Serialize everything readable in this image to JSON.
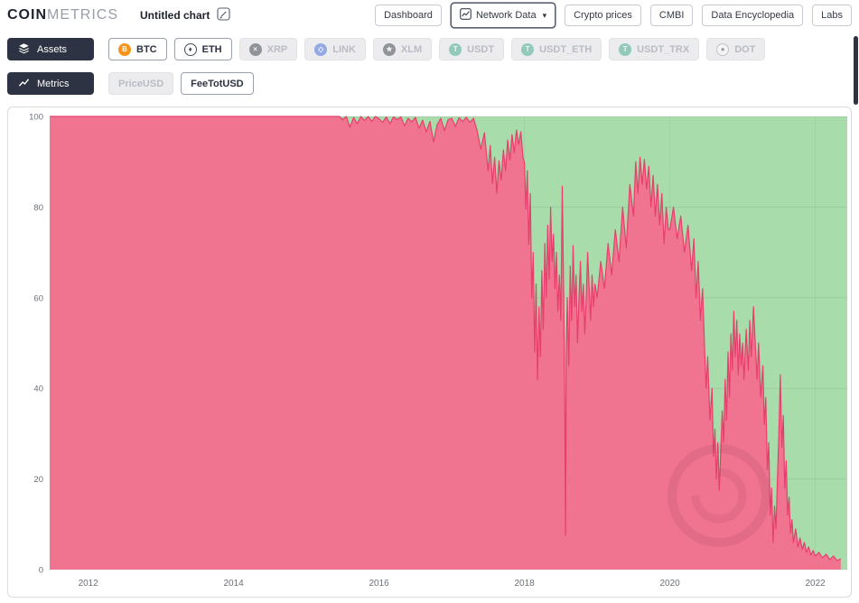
{
  "header": {
    "logo": {
      "part1": "COIN",
      "part2": "METRICS"
    },
    "chart_title": "Untitled chart",
    "nav": [
      {
        "id": "dashboard",
        "label": "Dashboard",
        "active": false
      },
      {
        "id": "network-data",
        "label": "Network Data",
        "active": true
      },
      {
        "id": "crypto-prices",
        "label": "Crypto prices",
        "active": false
      },
      {
        "id": "cmbi",
        "label": "CMBI",
        "active": false
      },
      {
        "id": "data-encyclopedia",
        "label": "Data Encyclopedia",
        "active": false
      },
      {
        "id": "labs",
        "label": "Labs",
        "active": false
      }
    ]
  },
  "assets": {
    "section_label": "Assets",
    "items": [
      {
        "id": "btc",
        "label": "BTC",
        "selected": true,
        "icon_glyph": "B",
        "icon_bg": "#f7931a",
        "icon_color": "#ffffff"
      },
      {
        "id": "eth",
        "label": "ETH",
        "selected": true,
        "icon_glyph": "♦",
        "icon_bg": "#ffffff",
        "icon_color": "#454c58",
        "icon_border": "#454c58"
      },
      {
        "id": "xrp",
        "label": "XRP",
        "selected": false,
        "icon_glyph": "×",
        "icon_bg": "#23292e",
        "icon_color": "#ffffff"
      },
      {
        "id": "link",
        "label": "LINK",
        "selected": false,
        "icon_glyph": "◇",
        "icon_bg": "#2a5ada",
        "icon_color": "#ffffff"
      },
      {
        "id": "xlm",
        "label": "XLM",
        "selected": false,
        "icon_glyph": "★",
        "icon_bg": "#23292e",
        "icon_color": "#ffffff"
      },
      {
        "id": "usdt",
        "label": "USDT",
        "selected": false,
        "icon_glyph": "T",
        "icon_bg": "#26a17b",
        "icon_color": "#ffffff"
      },
      {
        "id": "usdt_eth",
        "label": "USDT_ETH",
        "selected": false,
        "icon_glyph": "T",
        "icon_bg": "#26a17b",
        "icon_color": "#ffffff"
      },
      {
        "id": "usdt_trx",
        "label": "USDT_TRX",
        "selected": false,
        "icon_glyph": "T",
        "icon_bg": "#26a17b",
        "icon_color": "#ffffff"
      },
      {
        "id": "dot",
        "label": "DOT",
        "selected": false,
        "icon_glyph": "●",
        "icon_bg": "#ffffff",
        "icon_color": "#3a404c",
        "icon_border": "#8a8f9a"
      }
    ]
  },
  "metrics": {
    "section_label": "Metrics",
    "items": [
      {
        "id": "priceusd",
        "label": "PriceUSD",
        "selected": false
      },
      {
        "id": "feetotusd",
        "label": "FeeTotUSD",
        "selected": true
      }
    ]
  },
  "colors": {
    "pill_dark": "#2d3342",
    "btc_orange": "#f7931a",
    "usdt_green": "#26a17b",
    "axis_text": "#6a6f79"
  },
  "chart_data": {
    "type": "area",
    "stacked_percent": true,
    "title": "",
    "metric": "FeeTotUSD share (%)",
    "xlim": [
      2011.47,
      2022.44
    ],
    "ylim": [
      0,
      100
    ],
    "x_ticks": [
      2012,
      2014,
      2016,
      2018,
      2020,
      2022
    ],
    "y_ticks": [
      0,
      20,
      40,
      60,
      80,
      100
    ],
    "grid": true,
    "legend": "none",
    "series": [
      {
        "name": "BTC",
        "color": "#f0738f",
        "line_color": "#e63f6c",
        "points": [
          [
            2011.47,
            100
          ],
          [
            2012,
            100
          ],
          [
            2012.5,
            100
          ],
          [
            2013,
            100
          ],
          [
            2013.5,
            100
          ],
          [
            2014,
            100
          ],
          [
            2014.5,
            100
          ],
          [
            2015,
            100
          ],
          [
            2015.3,
            100
          ],
          [
            2015.45,
            100
          ],
          [
            2015.5,
            99.3
          ],
          [
            2015.55,
            100
          ],
          [
            2015.6,
            97.6
          ],
          [
            2015.65,
            99.8
          ],
          [
            2015.7,
            98.4
          ],
          [
            2015.75,
            100
          ],
          [
            2015.8,
            99.1
          ],
          [
            2015.85,
            100
          ],
          [
            2015.9,
            98.9
          ],
          [
            2015.95,
            100
          ],
          [
            2016,
            99.5
          ],
          [
            2016.05,
            98.7
          ],
          [
            2016.1,
            99.9
          ],
          [
            2016.15,
            98.4
          ],
          [
            2016.2,
            99.9
          ],
          [
            2016.25,
            99.3
          ],
          [
            2016.3,
            99.9
          ],
          [
            2016.35,
            97.9
          ],
          [
            2016.4,
            99.6
          ],
          [
            2016.45,
            98.8
          ],
          [
            2016.5,
            99.8
          ],
          [
            2016.55,
            97.4
          ],
          [
            2016.6,
            99.2
          ],
          [
            2016.65,
            96.6
          ],
          [
            2016.7,
            98.9
          ],
          [
            2016.75,
            94.4
          ],
          [
            2016.8,
            98.2
          ],
          [
            2016.85,
            99.6
          ],
          [
            2016.9,
            96.9
          ],
          [
            2016.95,
            99.3
          ],
          [
            2017,
            99.6
          ],
          [
            2017.05,
            97.8
          ],
          [
            2017.1,
            99.7
          ],
          [
            2017.15,
            98.9
          ],
          [
            2017.2,
            99.8
          ],
          [
            2017.25,
            98.7
          ],
          [
            2017.3,
            99.6
          ],
          [
            2017.35,
            96.8
          ],
          [
            2017.4,
            92.8
          ],
          [
            2017.45,
            96.4
          ],
          [
            2017.5,
            88
          ],
          [
            2017.53,
            93.6
          ],
          [
            2017.56,
            85.2
          ],
          [
            2017.59,
            91
          ],
          [
            2017.62,
            83
          ],
          [
            2017.65,
            90.2
          ],
          [
            2017.68,
            86
          ],
          [
            2017.71,
            92.6
          ],
          [
            2017.74,
            88
          ],
          [
            2017.77,
            94.8
          ],
          [
            2017.8,
            90.4
          ],
          [
            2017.83,
            96
          ],
          [
            2017.86,
            92
          ],
          [
            2017.89,
            97
          ],
          [
            2017.92,
            93.8
          ],
          [
            2017.95,
            96.6
          ],
          [
            2017.98,
            91
          ],
          [
            2018,
            89.8
          ],
          [
            2018.02,
            79.6
          ],
          [
            2018.04,
            88
          ],
          [
            2018.06,
            71.8
          ],
          [
            2018.08,
            83
          ],
          [
            2018.1,
            60
          ],
          [
            2018.12,
            70
          ],
          [
            2018.14,
            48
          ],
          [
            2018.16,
            63
          ],
          [
            2018.18,
            42
          ],
          [
            2018.2,
            58
          ],
          [
            2018.22,
            47
          ],
          [
            2018.24,
            66
          ],
          [
            2018.26,
            53
          ],
          [
            2018.28,
            72
          ],
          [
            2018.3,
            60
          ],
          [
            2018.32,
            76
          ],
          [
            2018.34,
            64
          ],
          [
            2018.36,
            80
          ],
          [
            2018.38,
            68
          ],
          [
            2018.4,
            74
          ],
          [
            2018.42,
            62
          ],
          [
            2018.44,
            70
          ],
          [
            2018.46,
            57
          ],
          [
            2018.48,
            65
          ],
          [
            2018.5,
            55
          ],
          [
            2018.52,
            84.6
          ],
          [
            2018.54,
            60
          ],
          [
            2018.555,
            35
          ],
          [
            2018.565,
            7.5
          ],
          [
            2018.575,
            48
          ],
          [
            2018.59,
            60
          ],
          [
            2018.61,
            45
          ],
          [
            2018.63,
            67
          ],
          [
            2018.65,
            55
          ],
          [
            2018.67,
            71.5
          ],
          [
            2018.69,
            58
          ],
          [
            2018.71,
            65
          ],
          [
            2018.73,
            50
          ],
          [
            2018.75,
            60
          ],
          [
            2018.77,
            68
          ],
          [
            2018.79,
            57
          ],
          [
            2018.81,
            63
          ],
          [
            2018.83,
            52
          ],
          [
            2018.85,
            60
          ],
          [
            2018.87,
            70
          ],
          [
            2018.89,
            62
          ],
          [
            2018.91,
            55
          ],
          [
            2018.93,
            65
          ],
          [
            2018.95,
            58
          ],
          [
            2018.97,
            63
          ],
          [
            2019,
            60
          ],
          [
            2019.05,
            68
          ],
          [
            2019.1,
            62
          ],
          [
            2019.15,
            72
          ],
          [
            2019.2,
            65
          ],
          [
            2019.25,
            75
          ],
          [
            2019.3,
            68
          ],
          [
            2019.35,
            80
          ],
          [
            2019.4,
            71
          ],
          [
            2019.45,
            85
          ],
          [
            2019.5,
            78
          ],
          [
            2019.53,
            90
          ],
          [
            2019.56,
            83
          ],
          [
            2019.59,
            91
          ],
          [
            2019.62,
            85
          ],
          [
            2019.65,
            90.5
          ],
          [
            2019.68,
            84
          ],
          [
            2019.71,
            89
          ],
          [
            2019.74,
            80
          ],
          [
            2019.77,
            87
          ],
          [
            2019.8,
            78
          ],
          [
            2019.83,
            85
          ],
          [
            2019.86,
            76
          ],
          [
            2019.89,
            83
          ],
          [
            2019.92,
            72
          ],
          [
            2019.95,
            80
          ],
          [
            2019.98,
            75
          ],
          [
            2020,
            75
          ],
          [
            2020.05,
            80
          ],
          [
            2020.1,
            73
          ],
          [
            2020.15,
            78
          ],
          [
            2020.2,
            70
          ],
          [
            2020.25,
            76
          ],
          [
            2020.3,
            66
          ],
          [
            2020.33,
            73
          ],
          [
            2020.36,
            60
          ],
          [
            2020.39,
            68
          ],
          [
            2020.42,
            55
          ],
          [
            2020.45,
            62
          ],
          [
            2020.48,
            48
          ],
          [
            2020.5,
            40
          ],
          [
            2020.52,
            47
          ],
          [
            2020.55,
            33
          ],
          [
            2020.58,
            40
          ],
          [
            2020.6,
            25
          ],
          [
            2020.62,
            31
          ],
          [
            2020.64,
            20
          ],
          [
            2020.66,
            28
          ],
          [
            2020.68,
            17.5
          ],
          [
            2020.7,
            26
          ],
          [
            2020.72,
            35
          ],
          [
            2020.74,
            28
          ],
          [
            2020.76,
            42
          ],
          [
            2020.78,
            33
          ],
          [
            2020.8,
            48
          ],
          [
            2020.82,
            38
          ],
          [
            2020.84,
            52
          ],
          [
            2020.86,
            44
          ],
          [
            2020.88,
            57
          ],
          [
            2020.9,
            47
          ],
          [
            2020.92,
            55
          ],
          [
            2020.94,
            43
          ],
          [
            2020.96,
            52
          ],
          [
            2020.98,
            45
          ],
          [
            2021,
            50
          ],
          [
            2021.02,
            42
          ],
          [
            2021.05,
            53
          ],
          [
            2021.08,
            44
          ],
          [
            2021.1,
            55
          ],
          [
            2021.12,
            47
          ],
          [
            2021.15,
            58
          ],
          [
            2021.18,
            48
          ],
          [
            2021.2,
            42
          ],
          [
            2021.22,
            50
          ],
          [
            2021.25,
            38
          ],
          [
            2021.28,
            45
          ],
          [
            2021.3,
            32
          ],
          [
            2021.32,
            38
          ],
          [
            2021.34,
            22
          ],
          [
            2021.36,
            28
          ],
          [
            2021.38,
            12
          ],
          [
            2021.4,
            18
          ],
          [
            2021.42,
            6
          ],
          [
            2021.44,
            14
          ],
          [
            2021.46,
            9
          ],
          [
            2021.48,
            20
          ],
          [
            2021.5,
            30
          ],
          [
            2021.52,
            43
          ],
          [
            2021.54,
            27
          ],
          [
            2021.56,
            34
          ],
          [
            2021.58,
            18
          ],
          [
            2021.6,
            24
          ],
          [
            2021.62,
            12
          ],
          [
            2021.64,
            16
          ],
          [
            2021.66,
            8
          ],
          [
            2021.68,
            11
          ],
          [
            2021.7,
            6
          ],
          [
            2021.73,
            9
          ],
          [
            2021.76,
            5
          ],
          [
            2021.79,
            7
          ],
          [
            2021.82,
            4.5
          ],
          [
            2021.85,
            6
          ],
          [
            2021.88,
            3.8
          ],
          [
            2021.91,
            5
          ],
          [
            2021.94,
            3.2
          ],
          [
            2021.97,
            4.2
          ],
          [
            2022,
            3
          ],
          [
            2022.05,
            3.8
          ],
          [
            2022.1,
            2.6
          ],
          [
            2022.15,
            3.4
          ],
          [
            2022.2,
            2.2
          ],
          [
            2022.25,
            3
          ],
          [
            2022.3,
            2
          ],
          [
            2022.35,
            2.4
          ]
        ]
      },
      {
        "name": "ETH",
        "color": "#a9dcab",
        "derived": "remainder-to-100"
      }
    ]
  }
}
